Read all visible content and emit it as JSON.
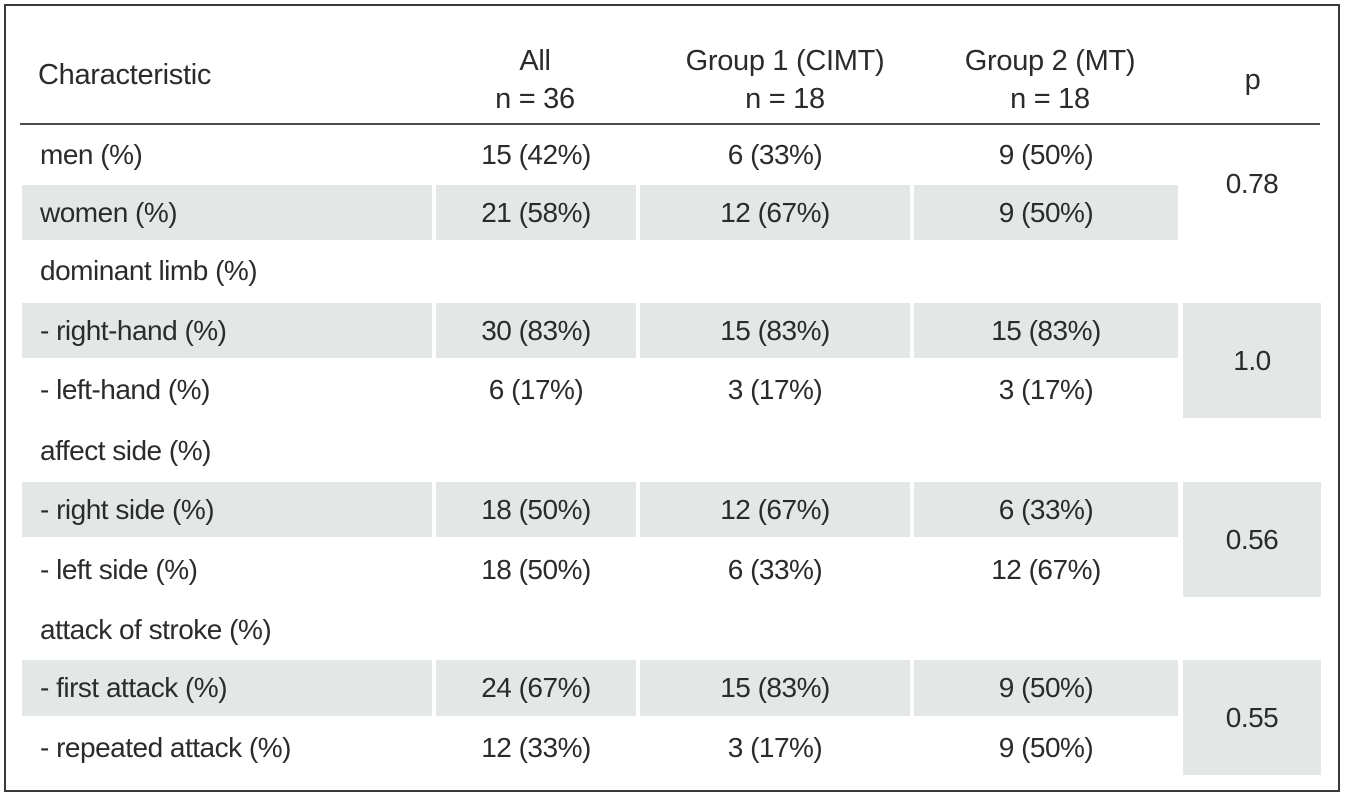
{
  "table": {
    "headers": {
      "characteristic": "Characteristic",
      "all": {
        "line1": "All",
        "line2": "n = 36"
      },
      "group1": {
        "line1": "Group 1 (CIMT)",
        "line2": "n = 18"
      },
      "group2": {
        "line1": "Group 2 (MT)",
        "line2": "n = 18"
      },
      "p": "p"
    },
    "rows": [
      {
        "label": "men (%)",
        "all": "15 (42%)",
        "g1": "6 (33%)",
        "g2": "9 (50%)"
      },
      {
        "label": "women (%)",
        "all": "21 (58%)",
        "g1": "12 (67%)",
        "g2": "9 (50%)"
      },
      {
        "label": "dominant limb (%)",
        "all": "",
        "g1": "",
        "g2": ""
      },
      {
        "label": "- right-hand (%)",
        "all": "30 (83%)",
        "g1": "15 (83%)",
        "g2": "15 (83%)"
      },
      {
        "label": "- left-hand (%)",
        "all": "6 (17%)",
        "g1": "3 (17%)",
        "g2": "3 (17%)"
      },
      {
        "label": "affect side (%)",
        "all": "",
        "g1": "",
        "g2": ""
      },
      {
        "label": "- right side (%)",
        "all": "18 (50%)",
        "g1": "12 (67%)",
        "g2": "6 (33%)"
      },
      {
        "label": "- left side (%)",
        "all": "18 (50%)",
        "g1": "6 (33%)",
        "g2": "12 (67%)"
      },
      {
        "label": "attack of stroke (%)",
        "all": "",
        "g1": "",
        "g2": ""
      },
      {
        "label": "- first attack (%)",
        "all": "24 (67%)",
        "g1": "15 (83%)",
        "g2": "9 (50%)"
      },
      {
        "label": "- repeated attack (%)",
        "all": "12 (33%)",
        "g1": "3 (17%)",
        "g2": "9 (50%)"
      }
    ],
    "p_values": [
      "0.78",
      "1.0",
      "0.56",
      "0.55"
    ]
  }
}
